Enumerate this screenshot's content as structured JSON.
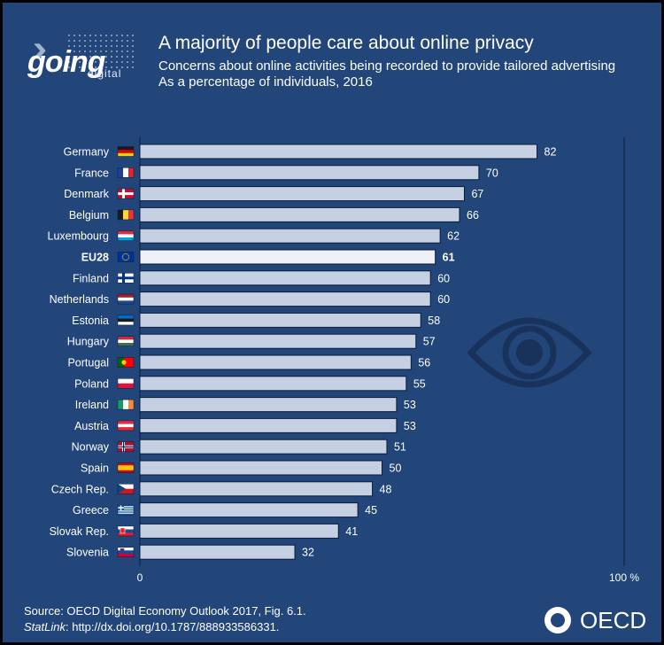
{
  "header": {
    "title": "A majority of people care about online privacy",
    "subtitle_line1": "Concerns about online activities being recorded to provide tailored advertising",
    "subtitle_line2": "As a percentage of individuals, 2016"
  },
  "logo": {
    "going": "going",
    "digital": "digital"
  },
  "chart_data": {
    "type": "bar",
    "orientation": "horizontal",
    "title": "A majority of people care about online privacy",
    "unit": "% of individuals",
    "xlim": [
      0,
      100
    ],
    "axis_min_label": "0",
    "axis_max_label": "100 %",
    "highlight": "EU28",
    "categories": [
      "Germany",
      "France",
      "Denmark",
      "Belgium",
      "Luxembourg",
      "EU28",
      "Finland",
      "Netherlands",
      "Estonia",
      "Hungary",
      "Portugal",
      "Poland",
      "Ireland",
      "Austria",
      "Norway",
      "Spain",
      "Czech Rep.",
      "Greece",
      "Slovak Rep.",
      "Slovenia"
    ],
    "values": [
      82,
      70,
      67,
      66,
      62,
      61,
      60,
      60,
      58,
      57,
      56,
      55,
      53,
      53,
      51,
      50,
      48,
      45,
      41,
      32
    ],
    "flags": [
      "de",
      "fr",
      "dk",
      "be",
      "lu",
      "eu",
      "fi",
      "nl",
      "ee",
      "hu",
      "pt",
      "pl",
      "ie",
      "at",
      "no",
      "es",
      "cz",
      "gr",
      "sk",
      "si"
    ]
  },
  "colors": {
    "background": "#22457a",
    "bar": "#c5d0e2",
    "bar_highlight": "#eef2f8",
    "bar_stroke": "#0b1d3a",
    "text": "#ffffff",
    "icon": "#18325c"
  },
  "footer": {
    "source": "Source: OECD Digital Economy Outlook 2017, Fig. 6.1.",
    "statlink_label": "StatLink",
    "statlink_url": ": http://dx.doi.org/10.1787/888933586331."
  },
  "brand": {
    "oecd": "OECD"
  }
}
